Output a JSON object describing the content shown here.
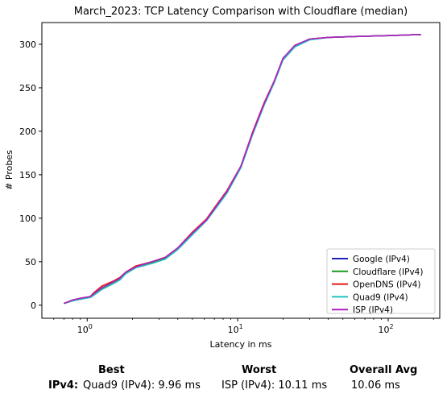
{
  "chart_data": {
    "type": "line",
    "title": "March_2023: TCP Latency Comparison with Cloudflare (median)",
    "xlabel": "Latency in ms",
    "ylabel": "# Probes",
    "xscale": "log",
    "xlim": [
      0.5,
      220
    ],
    "ylim": [
      -15,
      325
    ],
    "x_ticks": [
      1,
      10,
      100
    ],
    "x_tick_labels": [
      "10^0",
      "10^1",
      "10^2"
    ],
    "y_ticks": [
      0,
      50,
      100,
      150,
      200,
      250,
      300
    ],
    "legend_position": "lower-right",
    "series": [
      {
        "name": "Google (IPv4)",
        "color": "#2020c0",
        "x": [
          0.7,
          0.8,
          0.9,
          1.05,
          1.1,
          1.25,
          1.5,
          1.65,
          1.8,
          2.1,
          2.7,
          3.3,
          4.0,
          5.0,
          6.2,
          7.2,
          8.5,
          10.5,
          12.5,
          15,
          17.5,
          20,
          24,
          30,
          40,
          60,
          100,
          150,
          165
        ],
        "y": [
          2,
          5,
          7,
          9,
          12,
          19,
          26,
          30,
          37,
          44,
          49,
          54,
          65,
          82,
          98,
          113,
          130,
          159,
          196,
          231,
          257,
          283,
          298,
          306,
          308,
          309,
          310,
          311,
          311
        ]
      },
      {
        "name": "Cloudflare (IPv4)",
        "color": "#1a9a1a",
        "x": [
          0.7,
          0.8,
          0.9,
          1.05,
          1.1,
          1.25,
          1.5,
          1.65,
          1.8,
          2.1,
          2.7,
          3.3,
          4.0,
          5.0,
          6.2,
          7.2,
          8.5,
          10.5,
          12.5,
          15,
          17.5,
          20,
          24,
          30,
          40,
          60,
          100,
          150,
          165
        ],
        "y": [
          2,
          5,
          7,
          9,
          12,
          19,
          26,
          30,
          37,
          44,
          49,
          54,
          65,
          82,
          98,
          113,
          130,
          159,
          196,
          231,
          257,
          283,
          298,
          306,
          308,
          309,
          310,
          311,
          311
        ]
      },
      {
        "name": "OpenDNS (IPv4)",
        "color": "#e01a1a",
        "x": [
          0.7,
          0.8,
          0.9,
          1.05,
          1.1,
          1.25,
          1.5,
          1.65,
          1.8,
          2.1,
          2.7,
          3.3,
          4.0,
          5.0,
          6.2,
          7.2,
          8.5,
          10.5,
          12.5,
          15,
          17.5,
          20,
          24,
          30,
          40,
          60,
          100,
          150,
          165
        ],
        "y": [
          2,
          5,
          8,
          10,
          14,
          22,
          28,
          32,
          38,
          45,
          50,
          55,
          66,
          84,
          99,
          115,
          132,
          160,
          198,
          233,
          258,
          284,
          298,
          306,
          308,
          309,
          310,
          311,
          311
        ]
      },
      {
        "name": "Quad9 (IPv4)",
        "color": "#20c0c0",
        "x": [
          0.7,
          0.8,
          0.9,
          1.05,
          1.1,
          1.25,
          1.5,
          1.65,
          1.8,
          2.1,
          2.7,
          3.3,
          4.0,
          5.0,
          6.2,
          7.2,
          8.5,
          10.5,
          12.5,
          15,
          17.5,
          20,
          24,
          30,
          40,
          60,
          100,
          150,
          165
        ],
        "y": [
          2,
          5,
          7,
          9,
          11,
          18,
          25,
          29,
          36,
          43,
          48,
          53,
          64,
          81,
          97,
          112,
          129,
          158,
          195,
          230,
          256,
          282,
          297,
          305,
          308,
          309,
          310,
          311,
          311
        ]
      },
      {
        "name": "ISP (IPv4)",
        "color": "#b020c0",
        "x": [
          0.7,
          0.8,
          0.9,
          1.05,
          1.1,
          1.25,
          1.5,
          1.65,
          1.8,
          2.1,
          2.7,
          3.3,
          4.0,
          5.0,
          6.2,
          7.2,
          8.5,
          10.5,
          12.5,
          15,
          17.5,
          20,
          24,
          30,
          40,
          60,
          100,
          150,
          165
        ],
        "y": [
          2,
          6,
          8,
          10,
          13,
          20,
          27,
          31,
          38,
          44,
          50,
          55,
          66,
          83,
          98,
          114,
          131,
          160,
          197,
          232,
          258,
          284,
          299,
          306,
          308,
          309,
          310,
          311,
          311
        ]
      }
    ]
  },
  "summary": {
    "best_header": "Best",
    "worst_header": "Worst",
    "avg_header": "Overall Avg",
    "row_label": "IPv4:",
    "best_value": "Quad9 (IPv4): 9.96 ms",
    "worst_value": "ISP (IPv4): 10.11 ms",
    "avg_value": "10.06 ms"
  }
}
